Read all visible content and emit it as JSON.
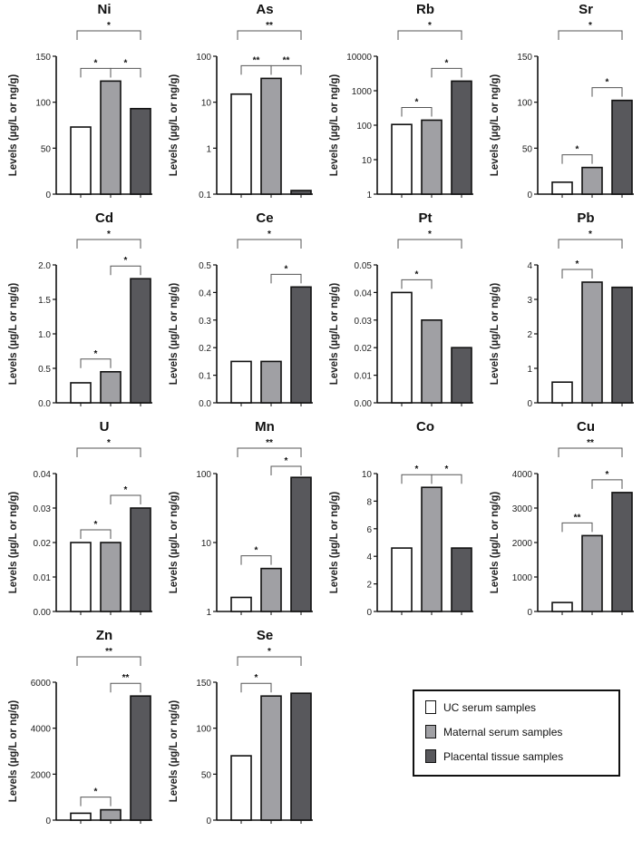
{
  "chart_data": [
    {
      "type": "bar",
      "title": "Ni",
      "ylabel": "Levels (µg/L or ng/g)",
      "scale": "linear",
      "ylim": [
        0,
        150
      ],
      "ticks": [
        0,
        50,
        100,
        150
      ],
      "tick_labels": [
        "0",
        "50",
        "100",
        "150"
      ],
      "values": [
        73,
        123,
        93
      ],
      "brackets": [
        {
          "from": 1,
          "to": 2,
          "label": "*"
        },
        {
          "from": 2,
          "to": 3,
          "label": "*"
        },
        {
          "from": 1,
          "to": 3,
          "label": "*"
        }
      ]
    },
    {
      "type": "bar",
      "title": "As",
      "ylabel": "Levels (µg/L or ng/g)",
      "scale": "log",
      "ylim": [
        0.1,
        100
      ],
      "ticks": [
        0.1,
        1,
        10,
        100
      ],
      "tick_labels": [
        "0.1",
        "1",
        "10",
        "100"
      ],
      "values": [
        15,
        33,
        0.12
      ],
      "brackets": [
        {
          "from": 1,
          "to": 2,
          "label": "**"
        },
        {
          "from": 2,
          "to": 3,
          "label": "**"
        },
        {
          "from": 1,
          "to": 3,
          "label": "**"
        }
      ]
    },
    {
      "type": "bar",
      "title": "Rb",
      "ylabel": "Levels (µg/L or ng/g)",
      "scale": "log",
      "ylim": [
        1,
        10000
      ],
      "ticks": [
        1,
        10,
        100,
        1000,
        10000
      ],
      "tick_labels": [
        "1",
        "10",
        "100",
        "1000",
        "10000"
      ],
      "values": [
        105,
        140,
        1900
      ],
      "brackets": [
        {
          "from": 1,
          "to": 2,
          "label": "*"
        },
        {
          "from": 2,
          "to": 3,
          "label": "*"
        },
        {
          "from": 1,
          "to": 3,
          "label": "*"
        }
      ]
    },
    {
      "type": "bar",
      "title": "Sr",
      "ylabel": "Levels (µg/L or ng/g)",
      "scale": "linear",
      "ylim": [
        0,
        150
      ],
      "ticks": [
        0,
        50,
        100,
        150
      ],
      "tick_labels": [
        "0",
        "50",
        "100",
        "150"
      ],
      "values": [
        13,
        29,
        102
      ],
      "brackets": [
        {
          "from": 1,
          "to": 2,
          "label": "*"
        },
        {
          "from": 2,
          "to": 3,
          "label": "*"
        },
        {
          "from": 1,
          "to": 3,
          "label": "*"
        }
      ]
    },
    {
      "type": "bar",
      "title": "Cd",
      "ylabel": "Levels (µg/L or ng/g)",
      "scale": "linear",
      "ylim": [
        0,
        2
      ],
      "ticks": [
        0,
        0.5,
        1,
        1.5,
        2
      ],
      "tick_labels": [
        "0.0",
        "0.5",
        "1.0",
        "1.5",
        "2.0"
      ],
      "values": [
        0.29,
        0.45,
        1.8
      ],
      "brackets": [
        {
          "from": 1,
          "to": 2,
          "label": "*"
        },
        {
          "from": 2,
          "to": 3,
          "label": "*"
        },
        {
          "from": 1,
          "to": 3,
          "label": "*"
        }
      ]
    },
    {
      "type": "bar",
      "title": "Ce",
      "ylabel": "Levels (µg/L or ng/g)",
      "scale": "linear",
      "ylim": [
        0,
        0.5
      ],
      "ticks": [
        0,
        0.1,
        0.2,
        0.3,
        0.4,
        0.5
      ],
      "tick_labels": [
        "0.0",
        "0.1",
        "0.2",
        "0.3",
        "0.4",
        "0.5"
      ],
      "values": [
        0.15,
        0.15,
        0.42
      ],
      "brackets": [
        {
          "from": 2,
          "to": 3,
          "label": "*"
        },
        {
          "from": 1,
          "to": 3,
          "label": "*"
        }
      ]
    },
    {
      "type": "bar",
      "title": "Pt",
      "ylabel": "Levels (µg/L or ng/g)",
      "scale": "linear",
      "ylim": [
        0,
        0.05
      ],
      "ticks": [
        0,
        0.01,
        0.02,
        0.03,
        0.04,
        0.05
      ],
      "tick_labels": [
        "0.00",
        "0.01",
        "0.02",
        "0.03",
        "0.04",
        "0.05"
      ],
      "values": [
        0.04,
        0.03,
        0.02
      ],
      "brackets": [
        {
          "from": 1,
          "to": 2,
          "label": "*"
        },
        {
          "from": 1,
          "to": 3,
          "label": "*"
        }
      ]
    },
    {
      "type": "bar",
      "title": "Pb",
      "ylabel": "Levels (µg/L or ng/g)",
      "scale": "linear",
      "ylim": [
        0,
        4
      ],
      "ticks": [
        0,
        1,
        2,
        3,
        4
      ],
      "tick_labels": [
        "0",
        "1",
        "2",
        "3",
        "4"
      ],
      "values": [
        0.6,
        3.5,
        3.35
      ],
      "brackets": [
        {
          "from": 1,
          "to": 2,
          "label": "*"
        },
        {
          "from": 1,
          "to": 3,
          "label": "*"
        }
      ]
    },
    {
      "type": "bar",
      "title": "U",
      "ylabel": "Levels (µg/L or ng/g)",
      "scale": "linear",
      "ylim": [
        0,
        0.04
      ],
      "ticks": [
        0,
        0.01,
        0.02,
        0.03,
        0.04
      ],
      "tick_labels": [
        "0.00",
        "0.01",
        "0.02",
        "0.03",
        "0.04"
      ],
      "values": [
        0.02,
        0.02,
        0.03
      ],
      "brackets": [
        {
          "from": 1,
          "to": 2,
          "label": "*"
        },
        {
          "from": 2,
          "to": 3,
          "label": "*"
        },
        {
          "from": 1,
          "to": 3,
          "label": "*"
        }
      ]
    },
    {
      "type": "bar",
      "title": "Mn",
      "ylabel": "Levels (µg/L or ng/g)",
      "scale": "log",
      "ylim": [
        1,
        100
      ],
      "ticks": [
        1,
        10,
        100
      ],
      "tick_labels": [
        "1",
        "10",
        "100"
      ],
      "values": [
        1.6,
        4.2,
        88
      ],
      "brackets": [
        {
          "from": 1,
          "to": 2,
          "label": "*"
        },
        {
          "from": 2,
          "to": 3,
          "label": "*"
        },
        {
          "from": 1,
          "to": 3,
          "label": "**"
        }
      ]
    },
    {
      "type": "bar",
      "title": "Co",
      "ylabel": "Levels (µg/L or ng/g)",
      "scale": "linear",
      "ylim": [
        0,
        10
      ],
      "ticks": [
        0,
        2,
        4,
        6,
        8,
        10
      ],
      "tick_labels": [
        "0",
        "2",
        "4",
        "6",
        "8",
        "10"
      ],
      "values": [
        4.6,
        9.0,
        4.6
      ],
      "brackets": [
        {
          "from": 1,
          "to": 2,
          "label": "*"
        },
        {
          "from": 2,
          "to": 3,
          "label": "*"
        }
      ]
    },
    {
      "type": "bar",
      "title": "Cu",
      "ylabel": "Levels (µg/L or ng/g)",
      "scale": "linear",
      "ylim": [
        0,
        4000
      ],
      "ticks": [
        0,
        1000,
        2000,
        3000,
        4000
      ],
      "tick_labels": [
        "0",
        "1000",
        "2000",
        "3000",
        "4000"
      ],
      "values": [
        260,
        2200,
        3450
      ],
      "brackets": [
        {
          "from": 1,
          "to": 2,
          "label": "**"
        },
        {
          "from": 2,
          "to": 3,
          "label": "*"
        },
        {
          "from": 1,
          "to": 3,
          "label": "**"
        }
      ]
    },
    {
      "type": "bar",
      "title": "Zn",
      "ylabel": "Levels (µg/L or ng/g)",
      "scale": "linear",
      "ylim": [
        0,
        6000
      ],
      "ticks": [
        0,
        2000,
        4000,
        6000
      ],
      "tick_labels": [
        "0",
        "2000",
        "4000",
        "6000"
      ],
      "values": [
        300,
        450,
        5400
      ],
      "brackets": [
        {
          "from": 1,
          "to": 2,
          "label": "*"
        },
        {
          "from": 2,
          "to": 3,
          "label": "**"
        },
        {
          "from": 1,
          "to": 3,
          "label": "**"
        }
      ]
    },
    {
      "type": "bar",
      "title": "Se",
      "ylabel": "Levels (µg/L or ng/g)",
      "scale": "linear",
      "ylim": [
        0,
        150
      ],
      "ticks": [
        0,
        50,
        100,
        150
      ],
      "tick_labels": [
        "0",
        "50",
        "100",
        "150"
      ],
      "values": [
        70,
        135,
        138
      ],
      "brackets": [
        {
          "from": 1,
          "to": 2,
          "label": "*"
        },
        {
          "from": 1,
          "to": 3,
          "label": "*"
        }
      ]
    }
  ],
  "legend": {
    "items": [
      {
        "label": "UC serum samples",
        "color": "#ffffff"
      },
      {
        "label": "Maternal serum samples",
        "color": "#a0a0a4"
      },
      {
        "label": "Placental tissue samples",
        "color": "#58585c"
      }
    ]
  }
}
